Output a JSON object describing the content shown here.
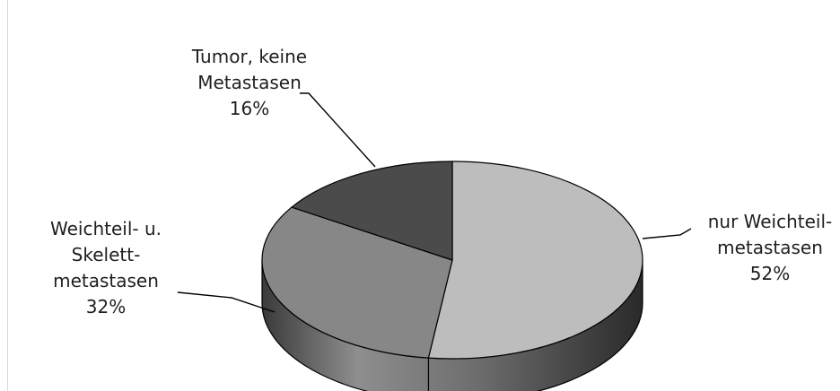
{
  "chart_data": {
    "type": "pie",
    "title": "",
    "slices": [
      {
        "label_lines": [
          "nur Weichteil-",
          "metastasen"
        ],
        "value": 52,
        "value_label": "52%",
        "color": "#bdbdbd"
      },
      {
        "label_lines": [
          "Weichteil- u.",
          "Skelett-",
          "metastasen"
        ],
        "value": 32,
        "value_label": "32%",
        "color": "#878787"
      },
      {
        "label_lines": [
          "Tumor, keine",
          "Metastasen"
        ],
        "value": 16,
        "value_label": "16%",
        "color": "#4b4b4b"
      }
    ],
    "legend": "none",
    "style": "3d"
  }
}
